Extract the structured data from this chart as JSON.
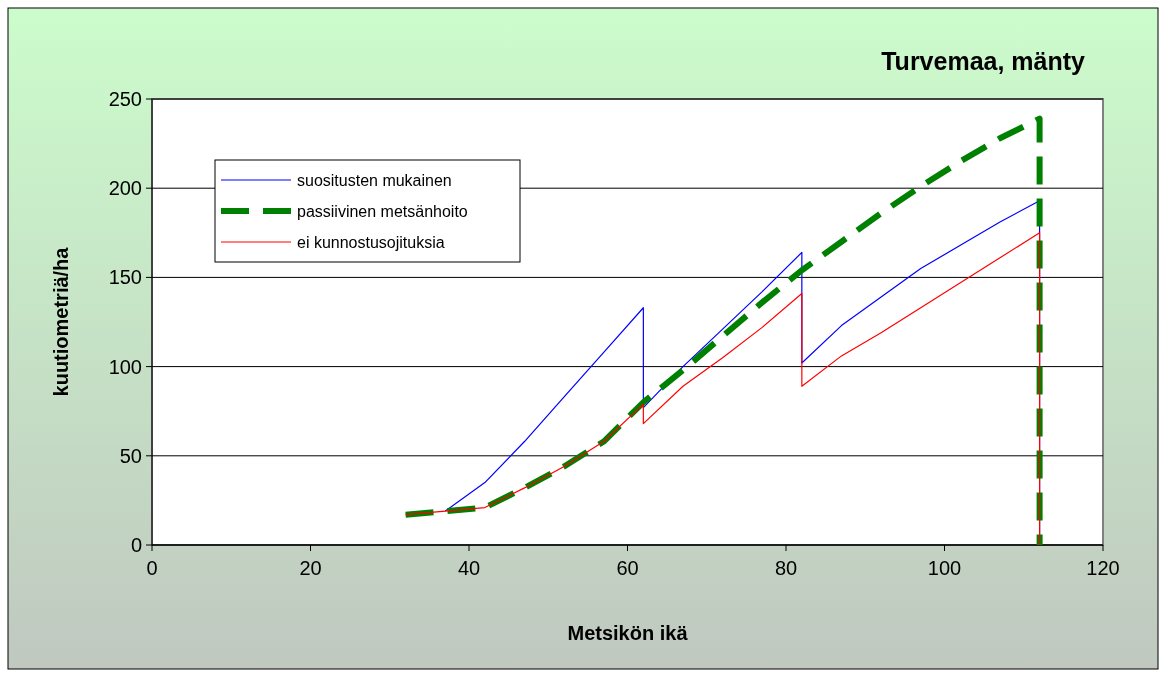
{
  "chart_data": {
    "type": "line",
    "title": "Turvemaa, mänty",
    "xlabel": "Metsikön ikä",
    "ylabel": "kuutiometriä/ha",
    "xlim": [
      0,
      120
    ],
    "xticks": [
      0,
      20,
      40,
      60,
      80,
      100,
      120
    ],
    "ylim": [
      0,
      250
    ],
    "yticks": [
      0,
      50,
      100,
      150,
      200,
      250
    ],
    "grid": "y",
    "legend": "top left",
    "series": [
      {
        "name": "suositusten mukainen",
        "color": "#0000ff",
        "line_style": "solid",
        "x": [
          37,
          42,
          47,
          52,
          57,
          62,
          62,
          67,
          72,
          77,
          82,
          82,
          87,
          92,
          97,
          102,
          107,
          112,
          112
        ],
        "values": [
          19,
          35,
          58,
          83,
          108,
          133,
          77,
          100,
          121,
          142,
          164,
          102,
          123,
          139,
          155,
          168,
          181,
          193,
          0
        ]
      },
      {
        "name": "passiivinen metsänhoito",
        "color": "#008000",
        "line_style": "dashed",
        "x": [
          32,
          37,
          42,
          47,
          52,
          57,
          62,
          67,
          72,
          77,
          82,
          87,
          92,
          97,
          102,
          107,
          112,
          112
        ],
        "values": [
          17,
          19,
          21,
          32,
          44,
          58,
          80,
          98,
          117,
          136,
          154,
          170,
          186,
          201,
          215,
          228,
          239,
          0
        ]
      },
      {
        "name": "ei kunnostusojituksia",
        "color": "#ff0000",
        "line_style": "solid",
        "x": [
          32,
          37,
          42,
          47,
          52,
          57,
          62,
          62,
          67,
          72,
          77,
          82,
          82,
          87,
          92,
          97,
          102,
          107,
          112,
          112
        ],
        "values": [
          17,
          19,
          21,
          32,
          44,
          58,
          79,
          68,
          89,
          105,
          122,
          141,
          89,
          106,
          119,
          133,
          147,
          161,
          175,
          0
        ]
      }
    ]
  }
}
